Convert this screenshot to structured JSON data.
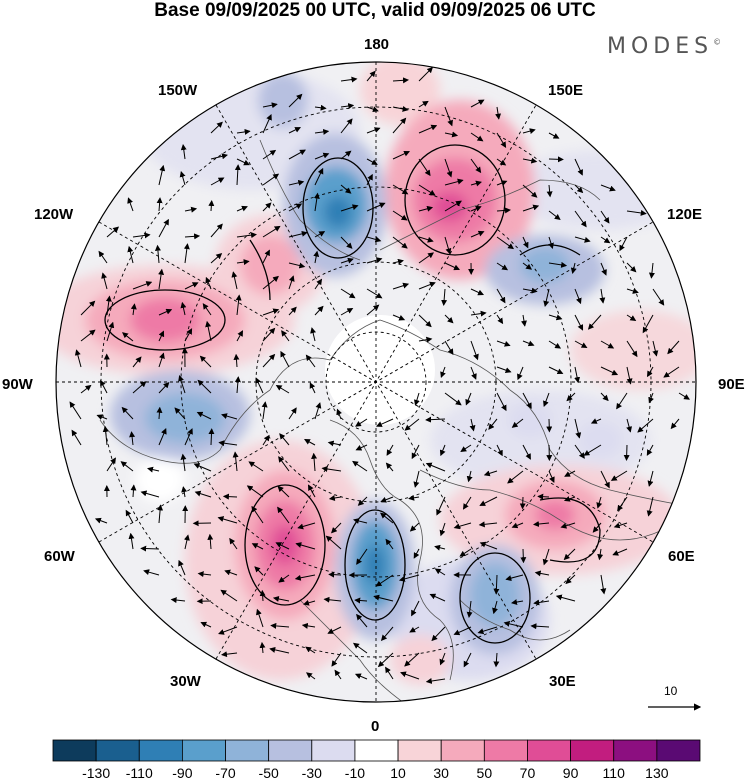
{
  "title": "Base 09/09/2025 00 UTC, valid 09/09/2025 06 UTC",
  "logo": "MODES",
  "logo_mark": "©",
  "longitude_labels": {
    "l180": "180",
    "l150e": "150E",
    "l120e": "120E",
    "l90e": "90E",
    "l60e": "60E",
    "l30e": "30E",
    "l0": "0",
    "l30w": "30W",
    "l60w": "60W",
    "l90w": "90W",
    "l120w": "120W",
    "l150w": "150W"
  },
  "reference_vector": {
    "label": "10"
  },
  "colorbar": {
    "colors": [
      "#0d3b5c",
      "#1a5f8f",
      "#2f7fb5",
      "#5a9fcc",
      "#8fb3d9",
      "#b7c0e0",
      "#dcdcf0",
      "#ffffff",
      "#f8d4d8",
      "#f5aabc",
      "#ee7aa6",
      "#e04d96",
      "#c21d7f",
      "#8c0f80",
      "#5a0a73"
    ],
    "tick_labels": [
      "-130",
      "-110",
      "-90",
      "-70",
      "-50",
      "-30",
      "-10",
      "10",
      "30",
      "50",
      "70",
      "90",
      "110",
      "130"
    ]
  },
  "map_data": {
    "projection": "north-polar-stereographic",
    "anomaly_centers": [
      {
        "lon": 160,
        "sign": "positive",
        "value": 95
      },
      {
        "lon": 178,
        "sign": "negative",
        "value": -75
      },
      {
        "lon": 127,
        "sign": "negative",
        "value": -55
      },
      {
        "lon": -110,
        "sign": "positive",
        "value": 80
      },
      {
        "lon": -135,
        "sign": "positive",
        "value": 40
      },
      {
        "lon": -155,
        "sign": "negative",
        "value": -30
      },
      {
        "lon": -75,
        "sign": "negative",
        "value": -55
      },
      {
        "lon": -30,
        "sign": "positive",
        "value": 95
      },
      {
        "lon": 0,
        "sign": "negative",
        "value": -75
      },
      {
        "lon": 30,
        "sign": "negative",
        "value": -55
      },
      {
        "lon": 60,
        "sign": "positive",
        "value": 75
      },
      {
        "lon": 85,
        "sign": "negative",
        "value": -30
      }
    ]
  }
}
